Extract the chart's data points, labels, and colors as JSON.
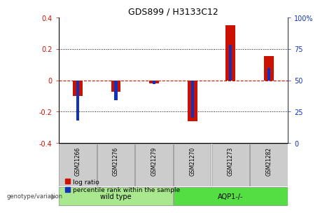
{
  "title": "GDS899 / H3133C12",
  "samples": [
    "GSM21266",
    "GSM21276",
    "GSM21279",
    "GSM21270",
    "GSM21273",
    "GSM21282"
  ],
  "log_ratio": [
    -0.1,
    -0.075,
    -0.02,
    -0.26,
    0.35,
    0.155
  ],
  "percentile_rank": [
    18,
    34,
    47,
    20,
    78,
    60
  ],
  "groups": [
    {
      "label": "wild type",
      "indices": [
        0,
        1,
        2
      ],
      "color": "#aae890"
    },
    {
      "label": "AQP1-/-",
      "indices": [
        3,
        4,
        5
      ],
      "color": "#55dd44"
    }
  ],
  "ylim_left": [
    -0.4,
    0.4
  ],
  "ylim_right": [
    0,
    100
  ],
  "yticks_left": [
    -0.4,
    -0.2,
    0.0,
    0.2,
    0.4
  ],
  "yticks_right": [
    0,
    25,
    50,
    75,
    100
  ],
  "red_color": "#cc1100",
  "blue_color": "#1133bb",
  "zero_line_color": "#cc1100",
  "bg_color": "#ffffff",
  "sample_box_color": "#cccccc",
  "genotype_label": "genotype/variation",
  "legend_log_ratio": "log ratio",
  "legend_percentile": "percentile rank within the sample"
}
